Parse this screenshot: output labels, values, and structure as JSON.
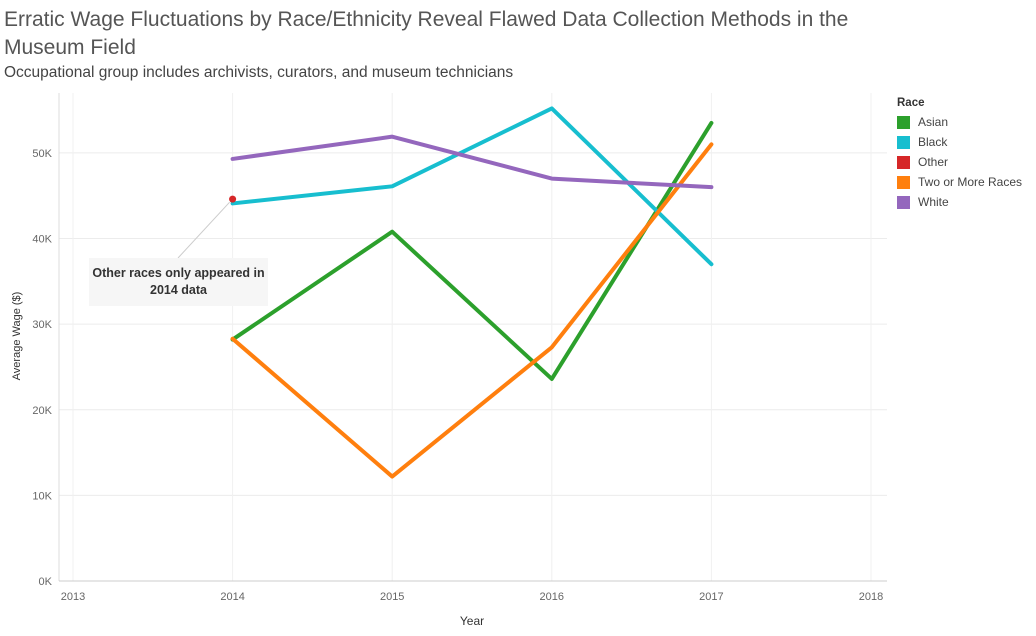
{
  "title": "Erratic Wage Fluctuations by Race/Ethnicity Reveal Flawed Data Collection Methods in the Museum Field",
  "subtitle": "Occupational group includes archivists, curators, and museum technicians",
  "annotation": "Other races only appeared in 2014 data",
  "chart_data": {
    "type": "line",
    "xlabel": "Year",
    "ylabel": "Average Wage ($)",
    "x_ticks": [
      "2013",
      "2014",
      "2015",
      "2016",
      "2017",
      "2018"
    ],
    "y_ticks": [
      0,
      10000,
      20000,
      30000,
      40000,
      50000
    ],
    "y_tick_labels": [
      "0K",
      "10K",
      "20K",
      "30K",
      "40K",
      "50K"
    ],
    "xlim": [
      2013,
      2018
    ],
    "ylim": [
      0,
      57000
    ],
    "grid": true,
    "legend_title": "Race",
    "legend_position": "right",
    "series": [
      {
        "name": "Asian",
        "color": "#2ca02c",
        "x": [
          2014,
          2015,
          2016,
          2017
        ],
        "values": [
          28200,
          40800,
          23600,
          53500
        ]
      },
      {
        "name": "Black",
        "color": "#17becf",
        "x": [
          2014,
          2015,
          2016,
          2017
        ],
        "values": [
          44100,
          46100,
          55200,
          37000
        ]
      },
      {
        "name": "Other",
        "color": "#d62728",
        "x": [
          2014
        ],
        "values": [
          44600
        ]
      },
      {
        "name": "Two or More Races",
        "color": "#ff7f0e",
        "x": [
          2014,
          2015,
          2016,
          2017
        ],
        "values": [
          28300,
          12200,
          27300,
          51000
        ]
      },
      {
        "name": "White",
        "color": "#9467bd",
        "x": [
          2014,
          2015,
          2016,
          2017
        ],
        "values": [
          49300,
          51900,
          47000,
          46000
        ]
      }
    ]
  }
}
